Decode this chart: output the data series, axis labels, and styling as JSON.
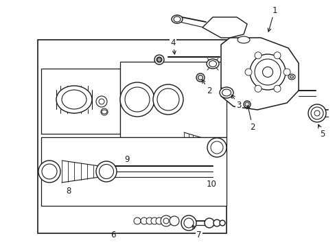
{
  "background_color": "#ffffff",
  "line_color": "#1a1a1a",
  "line_width": 1.0,
  "label_fontsize": 8.5,
  "figsize": [
    4.89,
    3.6
  ],
  "dpi": 100
}
